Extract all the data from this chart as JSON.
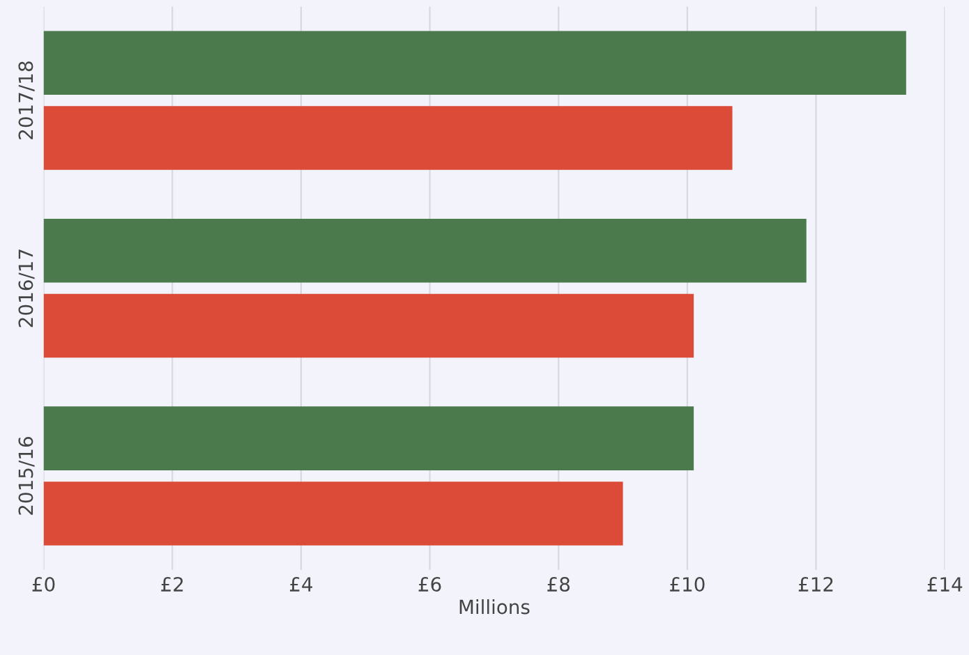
{
  "chart_data": {
    "type": "bar",
    "orientation": "horizontal",
    "xlabel": "Millions",
    "categories": [
      "2017/18",
      "2016/17",
      "2015/16"
    ],
    "series": [
      {
        "color": "#4b7a4c",
        "values": [
          13.4,
          11.85,
          10.1
        ]
      },
      {
        "color": "#dc4a38",
        "values": [
          10.7,
          10.1,
          9.0
        ]
      }
    ],
    "xlim": [
      0,
      14
    ],
    "xticks": [
      {
        "value": 0,
        "label": "£0"
      },
      {
        "value": 2,
        "label": "£2"
      },
      {
        "value": 4,
        "label": "£4"
      },
      {
        "value": 6,
        "label": "£6"
      },
      {
        "value": 8,
        "label": "£8"
      },
      {
        "value": 10,
        "label": "£10"
      },
      {
        "value": 12,
        "label": "£12"
      },
      {
        "value": 14,
        "label": "£14"
      }
    ],
    "grid": "x"
  }
}
